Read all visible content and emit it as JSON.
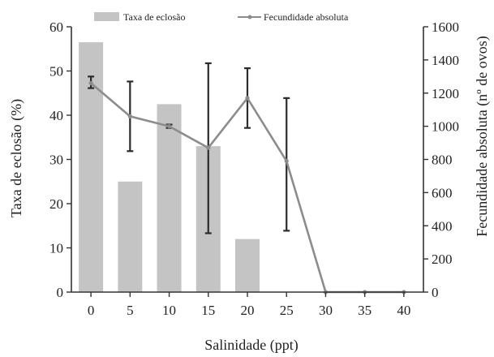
{
  "chart_data": {
    "type": "bar+line",
    "xlabel": "Salinidade (ppt)",
    "categories": [
      "0",
      "5",
      "10",
      "15",
      "20",
      "25",
      "30",
      "35",
      "40"
    ],
    "y_left": {
      "label": "Taxa de eclosão (%)",
      "range": [
        0,
        60
      ],
      "ticks": [
        "0",
        "10",
        "20",
        "30",
        "40",
        "50",
        "60"
      ]
    },
    "y_right": {
      "label": "Fecundidade absoluta (nº de ovos)",
      "range": [
        0,
        1600
      ],
      "ticks": [
        "0",
        "200",
        "400",
        "600",
        "800",
        "1000",
        "1200",
        "1400",
        "1600"
      ]
    },
    "series": [
      {
        "name": "Taxa de eclosão",
        "kind": "bar",
        "axis": "left",
        "values": [
          56.5,
          25,
          42.5,
          33,
          12,
          0,
          0,
          0,
          0
        ]
      },
      {
        "name": "Fecundidade absoluta",
        "kind": "line",
        "axis": "right",
        "values": [
          1260,
          1060,
          1000,
          870,
          1170,
          790,
          0,
          0,
          0
        ],
        "error_low": [
          1230,
          850,
          990,
          355,
          990,
          370,
          null,
          null,
          null
        ],
        "error_high": [
          1300,
          1270,
          1010,
          1380,
          1350,
          1170,
          null,
          null,
          null
        ]
      }
    ],
    "legend": {
      "position": "top",
      "items": [
        "Taxa de eclosão",
        "Fecundidade absoluta"
      ]
    },
    "colors": {
      "bar": "#c4c4c4",
      "line": "#8c8c8c",
      "errorbar": "#2b2b2b",
      "axis": "#333333"
    },
    "grid": false
  }
}
